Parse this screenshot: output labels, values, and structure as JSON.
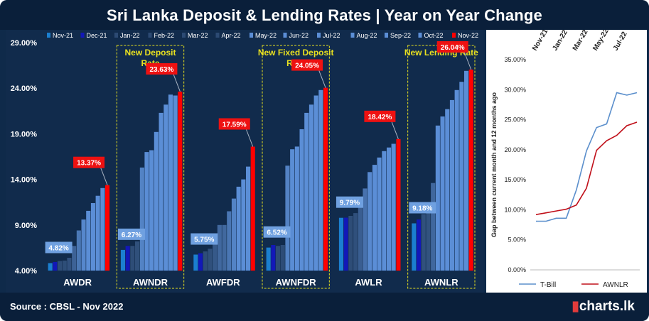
{
  "title": "Sri Lanka Deposit & Lending Rates | Year on Year Change",
  "source": "Source : CBSL - Nov 2022",
  "brand": "charts.lk",
  "colors": {
    "nov21": "#1b7fd0",
    "dec21": "#1218b8",
    "mid_dark": "#2c4a73",
    "mid_light": "#5b8ed6",
    "nov22": "#ff0000",
    "tbill": "#5b8fcc",
    "awnlr": "#c0101a"
  },
  "chart_data": [
    {
      "type": "bar",
      "legend": [
        "Nov-21",
        "Dec-21",
        "Jan-22",
        "Feb-22",
        "Mar-22",
        "Apr-22",
        "May-22",
        "Jun-22",
        "Jul-22",
        "Aug-22",
        "Sep-22",
        "Oct-22",
        "Nov-22"
      ],
      "ylim": [
        4,
        29
      ],
      "yticks": [
        "4.00%",
        "9.00%",
        "14.00%",
        "19.00%",
        "24.00%",
        "29.00%"
      ],
      "ytick_values": [
        4,
        9,
        14,
        19,
        24,
        29
      ],
      "groups": [
        {
          "name": "AWDR",
          "values": [
            4.82,
            4.94,
            5.05,
            5.1,
            5.4,
            6.7,
            8.4,
            9.6,
            10.55,
            11.4,
            12.2,
            13.05,
            13.37
          ],
          "first_label": "4.82%",
          "last_label": "13.37%"
        },
        {
          "name": "AWNDR",
          "values": [
            6.27,
            6.7,
            6.7,
            7.2,
            15.3,
            17.0,
            17.2,
            19.2,
            21.3,
            22.2,
            23.3,
            23.2,
            23.63
          ],
          "first_label": "6.27%",
          "last_label": "23.63%",
          "annotation": "New Deposit Rate"
        },
        {
          "name": "AWFDR",
          "values": [
            5.75,
            5.9,
            6.1,
            6.4,
            7.4,
            9.0,
            9.0,
            10.5,
            11.9,
            13.2,
            14.0,
            15.4,
            17.59
          ],
          "first_label": "5.75%",
          "last_label": "17.59%"
        },
        {
          "name": "AWNFDR",
          "values": [
            6.52,
            6.8,
            6.7,
            6.8,
            15.5,
            17.3,
            17.6,
            19.5,
            21.3,
            22.2,
            23.2,
            23.8,
            24.05
          ],
          "first_label": "6.52%",
          "last_label": "24.05%",
          "annotation": "New  Fixed Deposit Rate"
        },
        {
          "name": "AWLR",
          "values": [
            9.79,
            9.8,
            10.0,
            10.3,
            11.4,
            13.0,
            14.8,
            15.6,
            16.4,
            17.1,
            17.5,
            17.9,
            18.42
          ],
          "first_label": "9.79%",
          "last_label": "18.42%"
        },
        {
          "name": "AWNLR",
          "values": [
            9.18,
            9.6,
            10.2,
            10.5,
            13.6,
            19.9,
            20.9,
            21.7,
            22.7,
            23.8,
            24.7,
            25.9,
            26.04
          ],
          "first_label": "9.18%",
          "last_label": "26.04%",
          "annotation": "New Lending Rate"
        }
      ]
    },
    {
      "type": "line",
      "ylabel": "Gap between current month and 12 months ago",
      "ylim": [
        0,
        35
      ],
      "yticks": [
        "0.00%",
        "5.00%",
        "10.00%",
        "15.00%",
        "20.00%",
        "25.00%",
        "30.00%",
        "35.00%"
      ],
      "ytick_values": [
        0,
        5,
        10,
        15,
        20,
        25,
        30,
        35
      ],
      "xticks": [
        "Nov-21",
        "Jan-22",
        "Mar-22",
        "May-22",
        "Jul-22"
      ],
      "series": [
        {
          "name": "T-Bill",
          "values": [
            8.1,
            8.1,
            8.6,
            8.6,
            13.3,
            19.8,
            23.7,
            24.3,
            29.5,
            29.1,
            29.5
          ]
        },
        {
          "name": "AWNLR",
          "values": [
            9.2,
            9.5,
            9.8,
            10.1,
            10.8,
            13.6,
            19.9,
            21.5,
            22.4,
            24.0,
            24.6
          ]
        }
      ]
    }
  ]
}
